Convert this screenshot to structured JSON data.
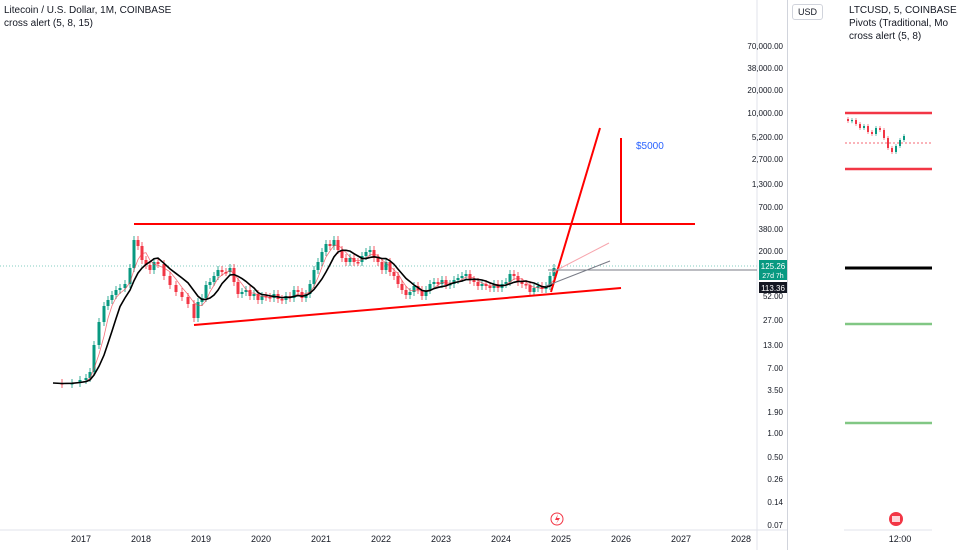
{
  "main": {
    "title": "Litecoin / U.S. Dollar, 1M, COINBASE",
    "indicator": "cross alert (5, 8, 15)",
    "target_label": "$5000",
    "price_scale": [
      "70,000.00",
      "38,000.00",
      "20,000.00",
      "10,000.00",
      "5,200.00",
      "2,700.00",
      "1,300.00",
      "700.00",
      "380.00",
      "200.00",
      "52.00",
      "27.00",
      "13.00",
      "7.00",
      "3.50",
      "1.90",
      "1.00",
      "0.50",
      "0.26",
      "0.14",
      "0.07"
    ],
    "price_badges": [
      {
        "label": "125.26",
        "sub": "27d 7h",
        "color": "#089981"
      },
      {
        "label": "113.36",
        "color": "#131722"
      }
    ],
    "time_axis": [
      "2017",
      "2018",
      "2019",
      "2020",
      "2021",
      "2022",
      "2023",
      "2024",
      "2025",
      "2026",
      "2027",
      "2028"
    ]
  },
  "side": {
    "currency_button": "USD",
    "title": "LTCUSD, 5, COINBASE",
    "indicator1": "Pivots (Traditional, Mo",
    "indicator2": "cross alert (5, 8)",
    "time_axis": [
      "12:00"
    ]
  },
  "colors": {
    "up": "#089981",
    "down": "#f23645",
    "trendline": "#ff0000",
    "target": "#2962ff",
    "ma": "#000000"
  }
}
